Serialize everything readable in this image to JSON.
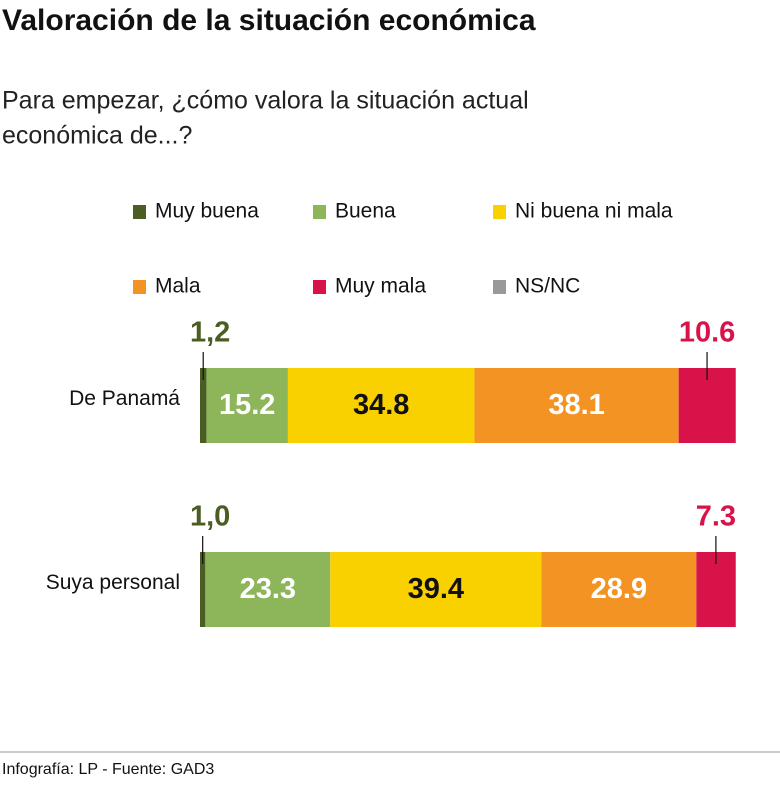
{
  "chart_data": {
    "type": "stacked-bar",
    "title": "Valoración de la situación económica",
    "subtitle": [
      "Para empezar, ¿cómo valora la situación actual",
      "económica de...?"
    ],
    "categories": [
      "De Panamá",
      "Suya personal"
    ],
    "series": [
      {
        "name": "Muy buena",
        "color": "#4a5e23",
        "values": [
          1.2,
          1.0
        ],
        "value_labels": [
          "1,2",
          "1,0"
        ]
      },
      {
        "name": "Buena",
        "color": "#8db55a",
        "values": [
          15.2,
          23.3
        ]
      },
      {
        "name": "Ni buena ni mala",
        "color": "#f9d000",
        "values": [
          34.8,
          39.4
        ]
      },
      {
        "name": "Mala",
        "color": "#f39324",
        "values": [
          38.1,
          28.9
        ]
      },
      {
        "name": "Muy mala",
        "color": "#d8134a",
        "values": [
          10.6,
          7.3
        ]
      },
      {
        "name": "NS/NC",
        "color": "#999999",
        "values": [
          0.1,
          0.1
        ]
      }
    ],
    "xlim": [
      0,
      100
    ],
    "source": "Infografía: LP - Fuente: GAD3"
  }
}
